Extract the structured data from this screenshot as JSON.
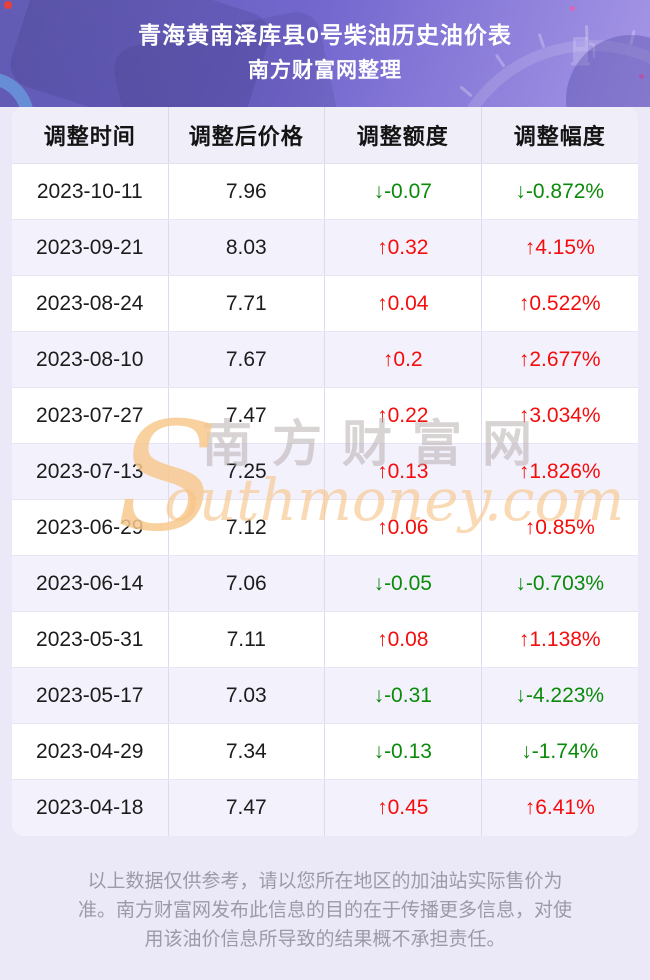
{
  "header": {
    "title": "青海黄南泽库县0号柴油历史油价表",
    "subtitle": "南方财富网整理"
  },
  "chart_data": {
    "type": "table",
    "title": "青海黄南泽库县0号柴油历史油价表",
    "subtitle": "南方财富网整理",
    "columns": [
      "调整时间",
      "调整后价格",
      "调整额度",
      "调整幅度"
    ],
    "rows": [
      [
        "2023-10-11",
        "7.96",
        "↓-0.07",
        "↓-0.872%"
      ],
      [
        "2023-09-21",
        "8.03",
        "↑0.32",
        "↑4.15%"
      ],
      [
        "2023-08-24",
        "7.71",
        "↑0.04",
        "↑0.522%"
      ],
      [
        "2023-08-10",
        "7.67",
        "↑0.2",
        "↑2.677%"
      ],
      [
        "2023-07-27",
        "7.47",
        "↑0.22",
        "↑3.034%"
      ],
      [
        "2023-07-13",
        "7.25",
        "↑0.13",
        "↑1.826%"
      ],
      [
        "2023-06-29",
        "7.12",
        "↑0.06",
        "↑0.85%"
      ],
      [
        "2023-06-14",
        "7.06",
        "↓-0.05",
        "↓-0.703%"
      ],
      [
        "2023-05-31",
        "7.11",
        "↑0.08",
        "↑1.138%"
      ],
      [
        "2023-05-17",
        "7.03",
        "↓-0.31",
        "↓-4.223%"
      ],
      [
        "2023-04-29",
        "7.34",
        "↓-0.13",
        "↓-1.74%"
      ],
      [
        "2023-04-18",
        "7.47",
        "↑0.45",
        "↑6.41%"
      ]
    ]
  },
  "watermark": {
    "initial": "S",
    "latin": "outhmoney.com",
    "cjk": "南方财富网"
  },
  "footer": {
    "disclaimer": "以上数据仅供参考，请以您所在地区的加油站实际售价为准。南方财富网发布此信息的目的在于传播更多信息，对使用该油价信息所导致的结果概不承担责任。"
  },
  "colors": {
    "up": "#f50d0d",
    "down": "#0b8a0b",
    "g1": "#5750ae",
    "g2": "#7468cf",
    "g3": "#a596e6",
    "wm_orange": "#f8c488",
    "wm_gray": "#b5abab"
  }
}
